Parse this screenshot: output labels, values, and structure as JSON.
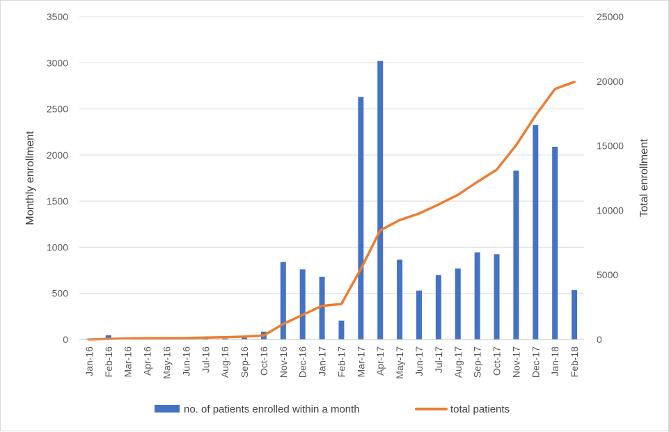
{
  "chart_data": {
    "type": "bar",
    "title": "",
    "categories": [
      "Jan-16",
      "Feb-16",
      "Mar-16",
      "Apr-16",
      "May-16",
      "Jun-16",
      "Jul-16",
      "Aug-16",
      "Sep-16",
      "Oct-16",
      "Nov-16",
      "Dec-16",
      "Jan-17",
      "Feb-17",
      "Mar-17",
      "Apr-17",
      "May-17",
      "Jun-17",
      "Jul-17",
      "Aug-17",
      "Sep-17",
      "Oct-17",
      "Nov-17",
      "Dec-17",
      "Jan-18",
      "Feb-18"
    ],
    "ylabel": "Monthly enrollment",
    "y2label": "Total enrollment",
    "ylim": [
      0,
      3500
    ],
    "y2lim": [
      0,
      25000
    ],
    "yticks": [
      "0",
      "500",
      "1000",
      "1500",
      "2000",
      "2500",
      "3000",
      "3500"
    ],
    "y2ticks": [
      "0",
      "5000",
      "10000",
      "15000",
      "20000",
      "25000"
    ],
    "grid": true,
    "legend_position": "bottom",
    "series": [
      {
        "name": "no. of patients enrolled within a month",
        "type": "bar",
        "axis": "left",
        "color": "#4472C4",
        "values": [
          10,
          45,
          10,
          5,
          5,
          5,
          15,
          10,
          20,
          85,
          840,
          760,
          680,
          205,
          2630,
          3020,
          865,
          530,
          700,
          770,
          945,
          925,
          1830,
          2325,
          2090,
          535
        ]
      },
      {
        "name": "total patients",
        "type": "line",
        "axis": "right",
        "color": "#ED7D31",
        "values": [
          0,
          45,
          80,
          100,
          105,
          110,
          150,
          170,
          220,
          310,
          1200,
          1900,
          2600,
          2750,
          5450,
          8450,
          9250,
          9750,
          10450,
          11200,
          12200,
          13150,
          15050,
          17350,
          19400,
          19950
        ]
      }
    ]
  }
}
